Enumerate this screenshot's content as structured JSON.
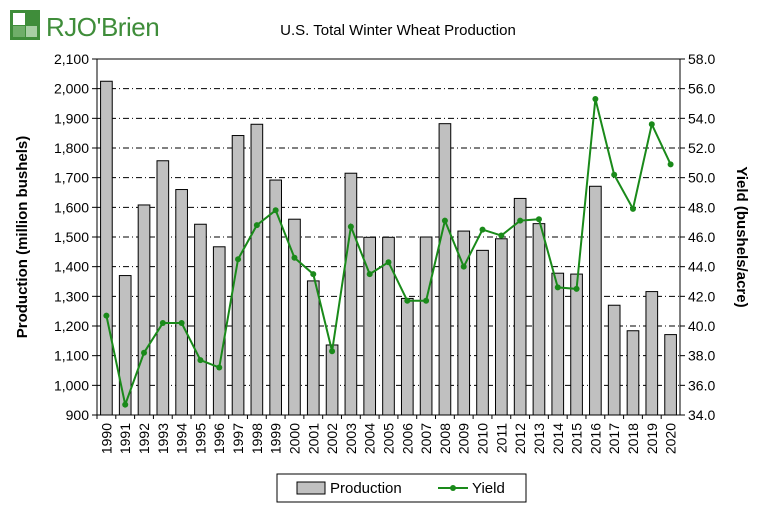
{
  "logo": {
    "text": "RJO'Brien",
    "brand_color": "#3f8d3a"
  },
  "chart_data": {
    "type": "bar",
    "title": "U.S. Total Winter Wheat Production",
    "categories": [
      "1990",
      "1991",
      "1992",
      "1993",
      "1994",
      "1995",
      "1996",
      "1997",
      "1998",
      "1999",
      "2000",
      "2001",
      "2002",
      "2003",
      "2004",
      "2005",
      "2006",
      "2007",
      "2008",
      "2009",
      "2010",
      "2011",
      "2012",
      "2013",
      "2014",
      "2015",
      "2016",
      "2017",
      "2018",
      "2019",
      "2020"
    ],
    "series": [
      {
        "name": "Production",
        "type": "bar",
        "axis": "left",
        "color": "#c0c0c0",
        "values": [
          2025,
          1370,
          1608,
          1757,
          1660,
          1543,
          1467,
          1842,
          1880,
          1692,
          1560,
          1352,
          1136,
          1715,
          1499,
          1499,
          1293,
          1500,
          1882,
          1520,
          1455,
          1494,
          1630,
          1545,
          1378,
          1375,
          1671,
          1270,
          1184,
          1316,
          1171
        ]
      },
      {
        "name": "Yield",
        "type": "line",
        "axis": "right",
        "color": "#1a8a1a",
        "values": [
          40.7,
          34.7,
          38.2,
          40.2,
          40.2,
          37.7,
          37.2,
          44.5,
          46.8,
          47.8,
          44.6,
          43.5,
          38.3,
          46.7,
          43.5,
          44.3,
          41.7,
          41.7,
          47.1,
          44.0,
          46.5,
          46.1,
          47.1,
          47.2,
          42.6,
          42.5,
          55.3,
          50.2,
          47.9,
          53.6,
          50.9
        ]
      }
    ],
    "ylabel": "Production (million bushels)",
    "ylabel_right": "Yield (bushels/acre)",
    "ylim": [
      900,
      2100
    ],
    "ylim_right": [
      34,
      58
    ],
    "yticks": [
      "900",
      "1,000",
      "1,100",
      "1,200",
      "1,300",
      "1,400",
      "1,500",
      "1,600",
      "1,700",
      "1,800",
      "1,900",
      "2,000",
      "2,100"
    ],
    "yticks_right": [
      "34.0",
      "36.0",
      "38.0",
      "40.0",
      "42.0",
      "44.0",
      "46.0",
      "48.0",
      "50.0",
      "52.0",
      "54.0",
      "56.0",
      "58.0"
    ],
    "grid": true,
    "legend": [
      "Production",
      "Yield"
    ],
    "legend_position": "bottom-center"
  }
}
